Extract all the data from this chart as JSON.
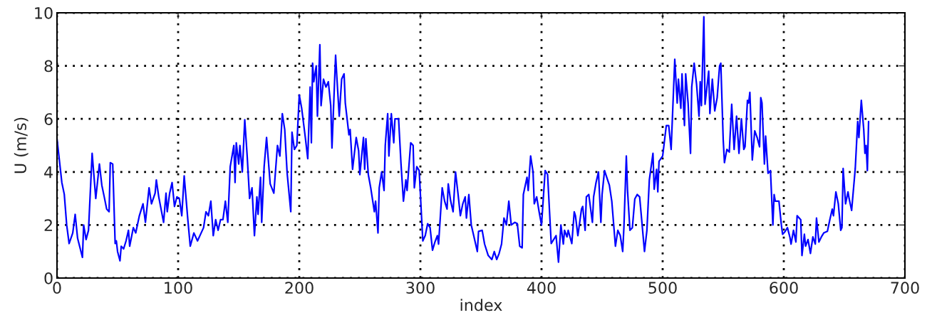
{
  "chart_data": {
    "type": "line",
    "xlabel": "index",
    "ylabel": "U (m/s)",
    "xlim": [
      0,
      700
    ],
    "xticks": [
      0,
      100,
      200,
      300,
      400,
      500,
      600,
      700
    ],
    "ylim": [
      0,
      10
    ],
    "yticks": [
      0,
      2,
      4,
      6,
      8,
      10
    ],
    "grid": true,
    "line_style": "solid",
    "marker": "none",
    "series": [
      {
        "color": "#0000ff",
        "x": [
          0,
          4,
          6,
          8,
          10,
          13,
          15,
          17,
          21,
          22,
          24,
          26,
          29,
          32,
          35,
          37,
          39,
          41,
          43,
          44,
          46,
          48,
          49,
          50,
          52,
          53,
          55,
          57,
          59,
          60,
          63,
          65,
          68,
          71,
          73,
          76,
          78,
          81,
          82,
          84,
          88,
          90,
          91,
          93,
          95,
          97,
          99,
          101,
          103,
          105,
          108,
          110,
          113,
          116,
          119,
          121,
          123,
          125,
          127,
          129,
          131,
          133,
          135,
          137,
          139,
          141,
          143,
          146,
          147,
          148,
          150,
          151,
          153,
          155,
          157,
          159,
          161,
          163,
          165,
          166,
          168,
          169,
          171,
          173,
          176,
          179,
          182,
          184,
          186,
          188,
          190,
          193,
          194,
          196,
          198,
          200,
          202,
          205,
          207,
          209,
          210,
          211,
          212,
          214,
          215,
          217,
          218,
          220,
          222,
          224,
          226,
          227,
          230,
          231,
          233,
          235,
          237,
          238,
          241,
          242,
          244,
          247,
          249,
          250,
          253,
          254,
          255,
          257,
          259,
          262,
          263,
          265,
          266,
          268,
          270,
          271,
          273,
          274,
          276,
          278,
          279,
          282,
          284,
          286,
          288,
          289,
          292,
          294,
          295,
          297,
          299,
          301,
          302,
          304,
          306,
          308,
          310,
          312,
          314,
          315,
          318,
          320,
          322,
          323,
          325,
          327,
          329,
          331,
          333,
          335,
          337,
          338,
          340,
          342,
          344,
          347,
          348,
          351,
          353,
          356,
          359,
          361,
          363,
          365,
          367,
          369,
          371,
          373,
          375,
          378,
          380,
          382,
          384,
          385,
          388,
          389,
          391,
          393,
          394,
          396,
          398,
          400,
          403,
          405,
          408,
          412,
          414,
          416,
          418,
          419,
          421,
          422,
          425,
          427,
          428,
          430,
          433,
          434,
          436,
          437,
          439,
          442,
          443,
          445,
          447,
          449,
          450,
          452,
          456,
          458,
          461,
          463,
          465,
          467,
          468,
          470,
          471,
          473,
          475,
          477,
          479,
          481,
          485,
          487,
          489,
          492,
          493,
          495,
          496,
          497,
          500,
          503,
          505,
          507,
          510,
          512,
          513,
          515,
          516,
          518,
          519,
          521,
          523,
          524,
          526,
          528,
          530,
          531,
          532,
          534,
          535,
          538,
          539,
          541,
          543,
          545,
          547,
          548,
          550,
          551,
          553,
          555,
          557,
          559,
          561,
          563,
          565,
          567,
          568,
          570,
          571,
          572,
          574,
          576,
          578,
          580,
          581,
          582,
          584,
          585,
          587,
          589,
          591,
          592,
          593,
          596,
          598,
          599,
          601,
          603,
          605,
          606,
          608,
          610,
          611,
          614,
          615,
          617,
          618,
          620,
          622,
          624,
          626,
          627,
          629,
          631,
          633,
          636,
          638,
          640,
          641,
          643,
          645,
          647,
          648,
          649,
          651,
          653,
          654,
          656,
          659,
          661,
          662,
          664,
          666,
          667,
          668,
          669,
          670
        ],
        "values": [
          5.25,
          3.6,
          3.16,
          2.0,
          1.3,
          1.7,
          2.4,
          1.5,
          0.78,
          2.0,
          1.45,
          1.8,
          4.7,
          3.0,
          4.3,
          3.5,
          3.06,
          2.6,
          2.5,
          4.35,
          4.3,
          1.3,
          1.4,
          1.0,
          0.65,
          1.2,
          1.1,
          1.4,
          1.8,
          1.2,
          1.9,
          1.7,
          2.35,
          2.8,
          2.1,
          3.4,
          2.8,
          3.2,
          3.7,
          3.06,
          2.1,
          3.2,
          2.5,
          3.2,
          3.6,
          2.7,
          3.06,
          3.0,
          2.35,
          3.85,
          2.2,
          1.2,
          1.7,
          1.4,
          1.7,
          1.9,
          2.5,
          2.35,
          2.9,
          1.6,
          2.2,
          1.8,
          2.2,
          2.2,
          2.9,
          2.1,
          4.2,
          5.0,
          3.6,
          5.1,
          4.3,
          5.0,
          4.0,
          5.97,
          4.6,
          3.0,
          3.4,
          1.6,
          3.06,
          2.4,
          3.8,
          2.1,
          4.2,
          5.3,
          3.55,
          3.2,
          5.0,
          4.6,
          6.2,
          5.6,
          3.95,
          2.5,
          5.5,
          4.85,
          5.0,
          6.9,
          6.4,
          5.3,
          4.5,
          7.2,
          5.1,
          8.1,
          7.4,
          8.0,
          6.1,
          8.8,
          6.5,
          7.5,
          7.2,
          7.4,
          6.5,
          4.9,
          8.4,
          7.6,
          6.1,
          7.5,
          7.7,
          6.6,
          5.4,
          5.6,
          4.1,
          5.3,
          4.8,
          3.9,
          5.3,
          4.1,
          5.25,
          3.9,
          3.4,
          2.5,
          2.9,
          1.7,
          3.4,
          4.0,
          3.3,
          5.0,
          6.2,
          4.6,
          6.2,
          5.1,
          6.0,
          6.0,
          4.3,
          2.9,
          3.7,
          3.3,
          5.1,
          5.0,
          3.4,
          4.2,
          4.05,
          2.26,
          1.4,
          1.6,
          2.05,
          1.9,
          1.05,
          1.36,
          1.6,
          1.28,
          3.4,
          2.9,
          2.6,
          3.55,
          2.9,
          2.5,
          4.0,
          3.2,
          2.35,
          2.8,
          3.06,
          2.26,
          3.15,
          2.0,
          1.6,
          1.0,
          1.76,
          1.8,
          1.28,
          0.85,
          0.7,
          1.0,
          0.7,
          0.93,
          1.28,
          2.26,
          2.0,
          2.9,
          2.0,
          2.1,
          2.05,
          1.2,
          1.14,
          3.15,
          3.8,
          3.3,
          4.6,
          4.0,
          2.8,
          3.06,
          2.5,
          2.0,
          4.05,
          3.9,
          1.3,
          1.6,
          0.6,
          2.0,
          1.28,
          1.8,
          1.55,
          1.8,
          1.3,
          2.5,
          2.35,
          1.6,
          2.6,
          2.7,
          1.8,
          3.06,
          3.15,
          2.1,
          3.06,
          3.6,
          4.0,
          2.1,
          3.15,
          4.05,
          3.5,
          2.9,
          1.2,
          1.8,
          1.6,
          1.0,
          1.9,
          4.6,
          3.3,
          1.8,
          1.9,
          2.98,
          3.15,
          3.06,
          1.0,
          1.8,
          3.7,
          4.7,
          3.35,
          4.1,
          3.25,
          4.4,
          4.6,
          5.75,
          5.75,
          4.85,
          8.25,
          6.6,
          7.5,
          6.4,
          7.7,
          5.75,
          7.7,
          6.6,
          4.7,
          7.2,
          8.1,
          7.3,
          6.1,
          7.4,
          6.5,
          9.85,
          6.55,
          7.8,
          6.2,
          7.5,
          6.3,
          6.8,
          8.0,
          8.1,
          5.2,
          4.35,
          4.85,
          4.75,
          6.55,
          4.85,
          6.1,
          4.7,
          6.0,
          4.85,
          4.95,
          6.7,
          6.6,
          7.0,
          4.45,
          5.55,
          5.3,
          4.95,
          6.8,
          6.6,
          4.3,
          5.35,
          3.95,
          4.05,
          2.0,
          3.15,
          2.9,
          2.9,
          2.0,
          1.65,
          1.75,
          1.9,
          1.55,
          1.28,
          1.8,
          1.36,
          2.35,
          2.2,
          0.85,
          1.65,
          1.2,
          1.45,
          0.93,
          1.55,
          1.28,
          2.26,
          1.36,
          1.55,
          1.7,
          1.76,
          2.2,
          2.6,
          2.35,
          3.25,
          2.8,
          1.8,
          1.9,
          4.13,
          2.8,
          3.25,
          2.98,
          2.55,
          4.13,
          5.9,
          5.3,
          6.7,
          5.6,
          4.7,
          5.0,
          4.05,
          5.9
        ]
      }
    ]
  }
}
